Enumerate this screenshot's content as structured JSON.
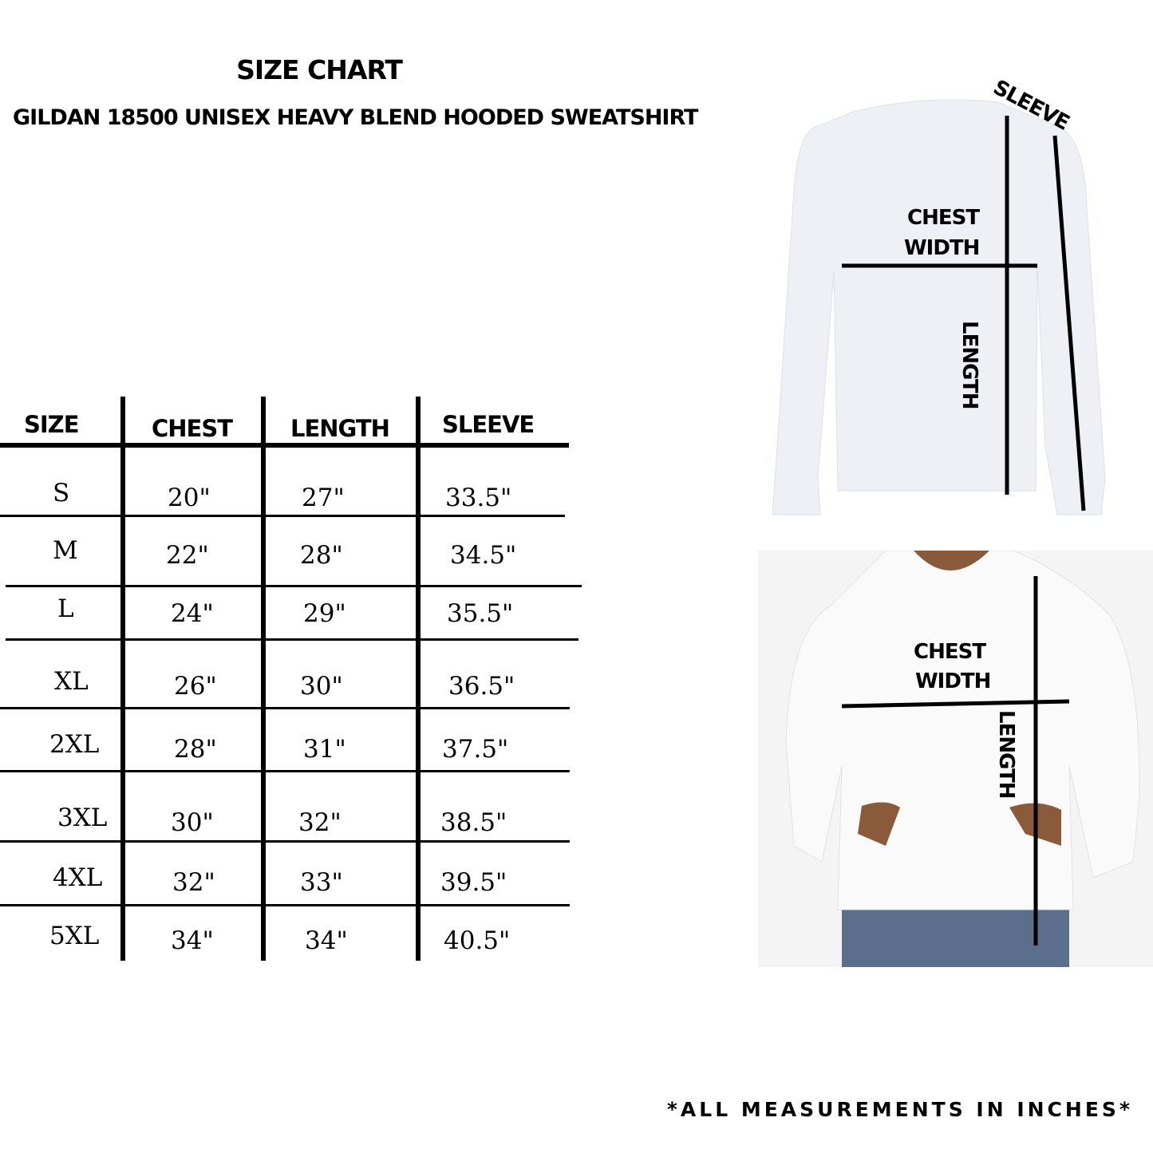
{
  "title": "SIZE CHART",
  "subtitle": "GILDAN  18500  UNISEX HEAVY BLEND HOODED SWEATSHIRT",
  "table": {
    "headers": [
      "SIZE",
      "CHEST",
      "LENGTH",
      "SLEEVE"
    ],
    "rows": [
      [
        "S",
        "20\"",
        "27\"",
        "33.5\""
      ],
      [
        "M",
        "22\"",
        "28\"",
        "34.5\""
      ],
      [
        "L",
        "24\"",
        "29\"",
        "35.5\""
      ],
      [
        "XL",
        "26\"",
        "30\"",
        "36.5\""
      ],
      [
        "2XL",
        "28\"",
        "31\"",
        "37.5\""
      ],
      [
        "3XL",
        "30\"",
        "32\"",
        "38.5\""
      ],
      [
        "4XL",
        "32\"",
        "33\"",
        "39.5\""
      ],
      [
        "5XL",
        "34\"",
        "34\"",
        "40.5\""
      ]
    ]
  },
  "diagram": {
    "sleeve": "SLEEVE",
    "chest1": "CHEST",
    "chest2": "WIDTH",
    "length": "LENGTH"
  },
  "footer": "*ALL MEASUREMENTS IN INCHES*"
}
